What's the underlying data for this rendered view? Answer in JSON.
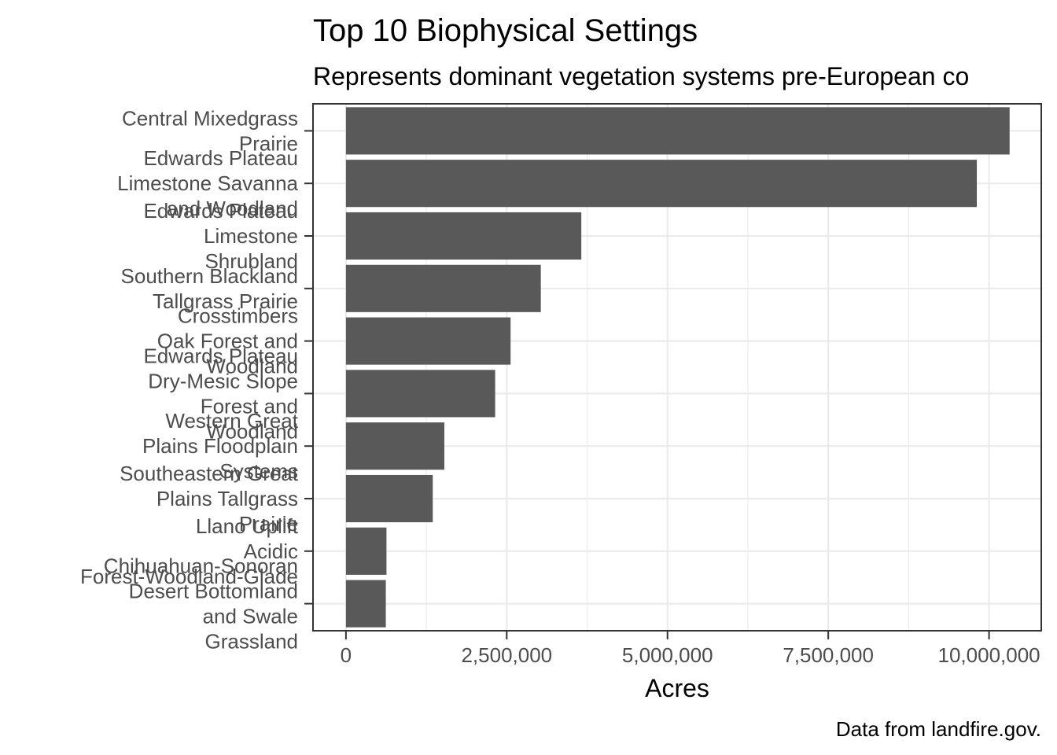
{
  "chart_data": {
    "type": "bar",
    "orientation": "horizontal",
    "title": "Top 10 Biophysical Settings",
    "subtitle": "Represents dominant vegetation systems pre-European co",
    "xlabel": "Acres",
    "ylabel": "",
    "caption": "Data from landfire.gov.",
    "xlim": [
      -500000,
      10800000
    ],
    "x_ticks": [
      0,
      2500000,
      5000000,
      7500000,
      10000000
    ],
    "x_tick_labels": [
      "0",
      "2,500,000",
      "5,000,000",
      "7,500,000",
      "10,000,000"
    ],
    "grid": true,
    "bar_color": "#595959",
    "categories": [
      "Central Mixedgrass Prairie",
      "Edwards Plateau Limestone Savanna and Woodland",
      "Edwards Plateau Limestone Shrubland",
      "Southern Blackland Tallgrass Prairie",
      "Crosstimbers Oak Forest and Woodland",
      "Edwards Plateau Dry-Mesic Slope Forest and Woodland",
      "Western Great Plains Floodplain Systems",
      "Southeastern Great Plains Tallgrass Prairie",
      "Llano Uplift Acidic Forest-Woodland-Glade",
      "Chihuahuan-Sonoran Desert Bottomland and Swale Grassland"
    ],
    "category_label_lines": [
      [
        "Central Mixedgrass",
        "Prairie"
      ],
      [
        "Edwards Plateau",
        "Limestone Savanna",
        "and Woodland"
      ],
      [
        "Edwards Plateau",
        "Limestone",
        "Shrubland"
      ],
      [
        "Southern Blackland",
        "Tallgrass Prairie"
      ],
      [
        "Crosstimbers",
        "Oak Forest and",
        "Woodland"
      ],
      [
        "Edwards Plateau",
        "Dry-Mesic Slope",
        "Forest and",
        "Woodland"
      ],
      [
        "Western Great",
        "Plains Floodplain",
        "Systems"
      ],
      [
        "Southeastern Great",
        "Plains Tallgrass",
        "Prairie"
      ],
      [
        "Llano Uplift",
        "Acidic",
        "Forest-Woodland-Glade"
      ],
      [
        "Chihuahuan-Sonoran",
        "Desert Bottomland",
        "and Swale",
        "Grassland"
      ]
    ],
    "values": [
      10320000,
      9810000,
      3660000,
      3030000,
      2560000,
      2320000,
      1530000,
      1350000,
      630000,
      620000
    ]
  }
}
